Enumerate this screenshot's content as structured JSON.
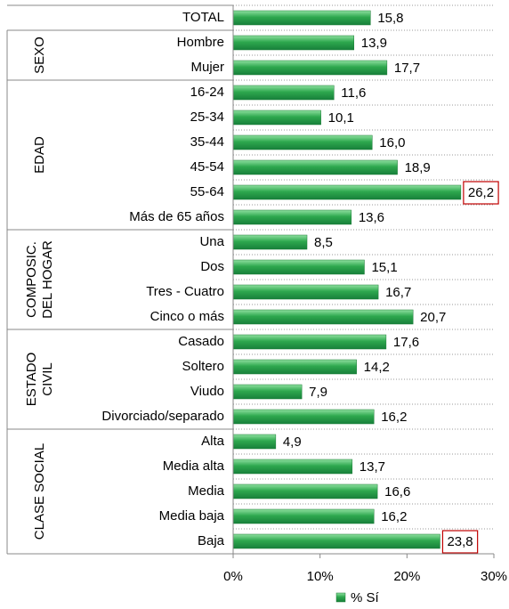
{
  "chart_data": {
    "type": "bar",
    "orientation": "horizontal",
    "categories": [
      "TOTAL",
      "Hombre",
      "Mujer",
      "16-24",
      "25-34",
      "35-44",
      "45-54",
      "55-64",
      "Más de 65 años",
      "Una",
      "Dos",
      "Tres - Cuatro",
      "Cinco o más",
      "Casado",
      "Soltero",
      "Viudo",
      "Divorciado/separado",
      "Alta",
      "Media alta",
      "Media",
      "Media baja",
      "Baja"
    ],
    "groups": [
      {
        "name": [
          "SEXO"
        ],
        "start": 1,
        "count": 2
      },
      {
        "name": [
          "EDAD"
        ],
        "start": 3,
        "count": 6
      },
      {
        "name": [
          "COMPOSIC.",
          "DEL HOGAR"
        ],
        "start": 9,
        "count": 4
      },
      {
        "name": [
          "ESTADO",
          "CIVIL"
        ],
        "start": 13,
        "count": 4
      },
      {
        "name": [
          "CLASE SOCIAL"
        ],
        "start": 17,
        "count": 5
      }
    ],
    "series": [
      {
        "name": "% Sí",
        "color": "#2ea84e",
        "values": [
          15.8,
          13.9,
          17.7,
          11.6,
          10.1,
          16.0,
          18.9,
          26.2,
          13.6,
          8.5,
          15.1,
          16.7,
          20.7,
          17.6,
          14.2,
          7.9,
          16.2,
          4.9,
          13.7,
          16.6,
          16.2,
          23.8
        ],
        "value_labels": [
          "15,8",
          "13,9",
          "17,7",
          "11,6",
          "10,1",
          "16,0",
          "18,9",
          "26,2",
          "13,6",
          "8,5",
          "15,1",
          "16,7",
          "20,7",
          "17,6",
          "14,2",
          "7,9",
          "16,2",
          "4,9",
          "13,7",
          "16,6",
          "16,2",
          "23,8"
        ]
      }
    ],
    "highlighted": [
      7,
      21
    ],
    "highlight_color": "#c00000",
    "xlim": [
      0,
      30
    ],
    "xticks": [
      {
        "value": 0,
        "label": "0%"
      },
      {
        "value": 10,
        "label": "10%"
      },
      {
        "value": 20,
        "label": "20%"
      },
      {
        "value": 30,
        "label": "30%"
      }
    ],
    "legend": "bottom"
  }
}
